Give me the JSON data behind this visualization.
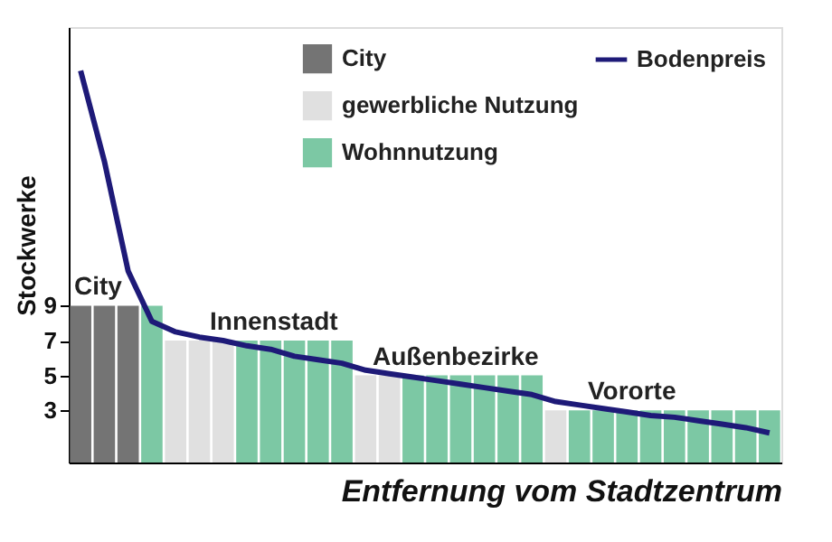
{
  "chart_data": {
    "type": "bar",
    "xlabel": "Entfernung vom Stadtzentrum",
    "ylabel": "Stockwerke",
    "categories": [
      null,
      null,
      null,
      null,
      null,
      null,
      null,
      null,
      null,
      null,
      null,
      null,
      null,
      null,
      null,
      null,
      null,
      null,
      null,
      null,
      null,
      null,
      null,
      null,
      null,
      null,
      null,
      null,
      null,
      null
    ],
    "ylim": [
      0,
      25
    ],
    "yticks": [
      3,
      5,
      7,
      9
    ],
    "tick_labels": "y",
    "grid": false,
    "legend": "top right",
    "series": [
      {
        "name": "City",
        "color": "#747474",
        "values": [
          9,
          9,
          9,
          null,
          null,
          null,
          null,
          null,
          null,
          null,
          null,
          null,
          null,
          null,
          null,
          null,
          null,
          null,
          null,
          null,
          null,
          null,
          null,
          null,
          null,
          null,
          null,
          null,
          null,
          null
        ]
      },
      {
        "name": "gewerbliche Nutzung",
        "color": "#e0e0e0",
        "values": [
          null,
          null,
          null,
          null,
          7,
          7,
          7,
          null,
          null,
          null,
          null,
          null,
          5,
          5,
          null,
          null,
          null,
          null,
          null,
          null,
          3,
          null,
          null,
          null,
          null,
          null,
          null,
          null,
          null,
          null
        ]
      },
      {
        "name": "Wohnnutzung",
        "color": "#7cc8a4",
        "values": [
          null,
          null,
          null,
          9,
          null,
          null,
          null,
          7,
          7,
          7,
          7,
          7,
          null,
          null,
          5,
          5,
          5,
          5,
          5,
          5,
          null,
          3,
          3,
          3,
          3,
          3,
          3,
          3,
          3,
          3
        ]
      },
      {
        "name": "Bodenpreis",
        "type": "line",
        "color": "#1e1a78",
        "line_style": "solid",
        "values": [
          22.5,
          17.3,
          11.0,
          8.1,
          7.5,
          7.2,
          7.0,
          6.7,
          6.5,
          6.1,
          5.9,
          5.7,
          5.3,
          5.1,
          4.9,
          4.7,
          4.5,
          4.3,
          4.1,
          3.9,
          3.5,
          3.3,
          3.1,
          2.9,
          2.7,
          2.6,
          2.4,
          2.2,
          2.0,
          1.7
        ]
      }
    ],
    "annotations": [
      {
        "text": "City",
        "y": 9
      },
      {
        "text": "Innenstadt",
        "y": 7
      },
      {
        "text": "Außenbezirke",
        "y": 5
      },
      {
        "text": "Vororte",
        "y": 3
      }
    ]
  }
}
